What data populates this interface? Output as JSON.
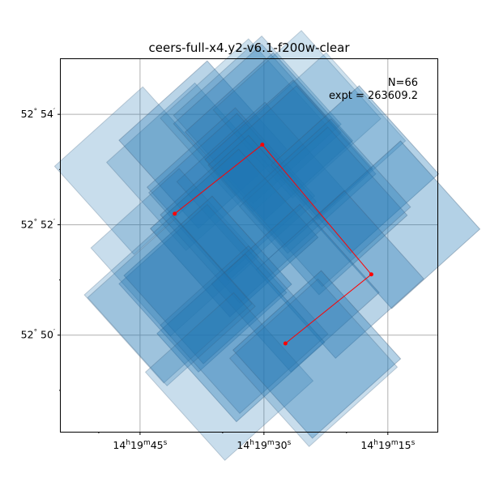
{
  "chart_data": {
    "type": "scatter",
    "title": "ceers-full-x4.y2-v6.1-f200w-clear",
    "xlabel": "",
    "ylabel": "",
    "annotations": {
      "count": "N=66",
      "exposure": "expt = 263609.2"
    },
    "x_axis": {
      "units": "seconds of RA offset from 14h19m30s",
      "range": [
        12.3,
        -10.5
      ],
      "ticks": [
        {
          "value": 7.5,
          "h": "14",
          "m": "19",
          "s": "45"
        },
        {
          "value": 0,
          "h": "14",
          "m": "19",
          "s": "30"
        },
        {
          "value": -7.5,
          "h": "14",
          "m": "19",
          "s": "15"
        }
      ],
      "minor_ticks": [
        10,
        2.5,
        -5
      ]
    },
    "y_axis": {
      "units": "arcminutes of Dec offset from 52°50'",
      "range": [
        -1.75,
        5.0
      ],
      "ticks": [
        {
          "value": 0,
          "deg": "52",
          "min": "50"
        },
        {
          "value": 2,
          "deg": "52",
          "min": "52"
        },
        {
          "value": 4,
          "deg": "52",
          "min": "54"
        }
      ],
      "minor_ticks": [
        -1,
        1,
        3
      ]
    },
    "grid": true,
    "footprints": [
      {
        "x": 7.6,
        "y": 2.98,
        "alpha": 0.55
      },
      {
        "x": 4.45,
        "y": 3.05,
        "alpha": 0.55
      },
      {
        "x": 3.7,
        "y": 3.45,
        "alpha": 0.7
      },
      {
        "x": 1.2,
        "y": 3.85,
        "alpha": 0.5
      },
      {
        "x": 0.4,
        "y": 3.9,
        "alpha": 0.55
      },
      {
        "x": 0.4,
        "y": 3.75,
        "alpha": 0.6
      },
      {
        "x": -0.3,
        "y": 3.6,
        "alpha": 0.7
      },
      {
        "x": -2.0,
        "y": 4.0,
        "alpha": 0.5
      },
      {
        "x": -3.5,
        "y": 3.6,
        "alpha": 0.5
      },
      {
        "x": 2.0,
        "y": 2.6,
        "alpha": 0.6
      },
      {
        "x": 1.9,
        "y": 2.5,
        "alpha": 0.6
      },
      {
        "x": 0.2,
        "y": 2.7,
        "alpha": 0.6
      },
      {
        "x": -1.5,
        "y": 3.1,
        "alpha": 0.7
      },
      {
        "x": -1.7,
        "y": 3.0,
        "alpha": 0.65
      },
      {
        "x": -5.5,
        "y": 3.0,
        "alpha": 0.75
      },
      {
        "x": -8.0,
        "y": 2.0,
        "alpha": 0.75
      },
      {
        "x": -3.6,
        "y": 2.25,
        "alpha": 0.65
      },
      {
        "x": -3.8,
        "y": 2.4,
        "alpha": 0.6
      },
      {
        "x": 5.4,
        "y": 1.5,
        "alpha": 0.55
      },
      {
        "x": 1.8,
        "y": 1.85,
        "alpha": 0.85
      },
      {
        "x": 1.2,
        "y": 2.1,
        "alpha": 0.65
      },
      {
        "x": -4.6,
        "y": 1.1,
        "alpha": 0.7
      },
      {
        "x": 3.7,
        "y": 0.85,
        "alpha": 0.7
      },
      {
        "x": 3.4,
        "y": 1.0,
        "alpha": 0.75
      },
      {
        "x": -1.9,
        "y": 0.85,
        "alpha": 0.7
      },
      {
        "x": 1.4,
        "y": -0.05,
        "alpha": 0.75
      },
      {
        "x": 1.2,
        "y": 0.1,
        "alpha": 0.6
      },
      {
        "x": 5.8,
        "y": 0.65,
        "alpha": 0.55
      },
      {
        "x": 5.6,
        "y": 0.6,
        "alpha": 0.55
      },
      {
        "x": 2.1,
        "y": -0.75,
        "alpha": 0.55
      },
      {
        "x": -3.2,
        "y": -0.35,
        "alpha": 0.75
      },
      {
        "x": -3.0,
        "y": -0.5,
        "alpha": 0.55
      }
    ],
    "path": {
      "x": [
        5.4,
        0.1,
        -6.5,
        -1.3
      ],
      "y": [
        2.2,
        3.45,
        1.1,
        -0.15
      ],
      "color": "#ff0000"
    },
    "footprint_color": "#1f77b4"
  }
}
